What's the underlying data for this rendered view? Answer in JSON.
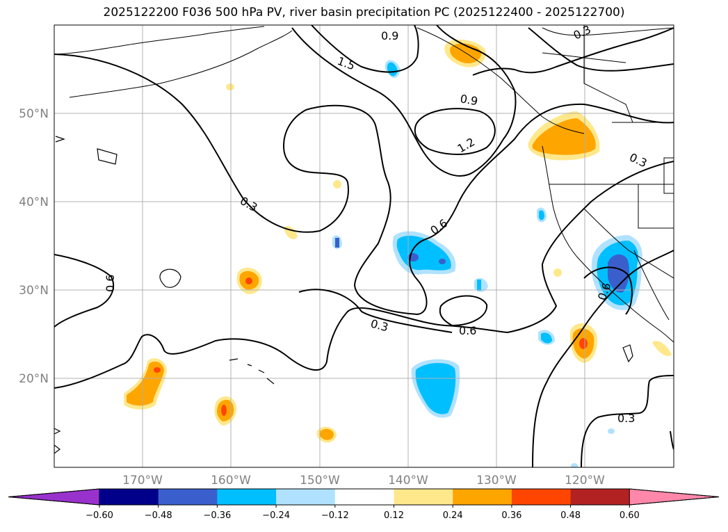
{
  "title": "2025122200 F036 500 hPa PV, river basin precipitation PC (2025122400 - 2025122700)",
  "map": {
    "projection": "plate-carree",
    "lon_range": [
      -180,
      -110
    ],
    "lat_range": [
      10,
      60
    ],
    "lat_ticks": [
      "20°N",
      "30°N",
      "40°N",
      "50°N"
    ],
    "lon_ticks": [
      "170°W",
      "160°W",
      "150°W",
      "140°W",
      "130°W",
      "120°W"
    ],
    "gridlines": true,
    "coastlines": true,
    "pv_contour_labels": [
      "0.9",
      "0.3",
      "1.5",
      "0.9",
      "1.2",
      "0.3",
      "0.3",
      "0.6",
      "0.6",
      "0.6",
      "0.3",
      "0.6",
      "0.3"
    ]
  },
  "colorbar": {
    "orientation": "horizontal",
    "extend": "both",
    "tick_labels": [
      "−0.60",
      "−0.48",
      "−0.36",
      "−0.24",
      "−0.12",
      "0.12",
      "0.24",
      "0.36",
      "0.48",
      "0.60"
    ],
    "levels": [
      -0.6,
      -0.48,
      -0.36,
      -0.24,
      -0.12,
      0.12,
      0.24,
      0.36,
      0.48,
      0.6
    ],
    "colors": [
      "#9932cc",
      "#00008b",
      "#3a5fcd",
      "#00bfff",
      "#b0e2ff",
      "#ffffff",
      "#ffe88c",
      "#ffa500",
      "#ff4500",
      "#b22222",
      "#ff88aa"
    ]
  },
  "precip_colors": {
    "pos_light": "#ffe88c",
    "pos_mid": "#ffa500",
    "pos_high": "#ff4500",
    "neg_light": "#b0e2ff",
    "neg_mid": "#00bfff",
    "neg_high": "#3a5fcd",
    "neg_higher": "#00008b"
  }
}
